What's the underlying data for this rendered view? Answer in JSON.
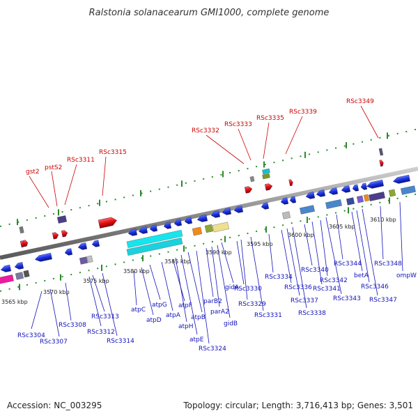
{
  "title": "Ralstonia solanacearum GMI1000, complete genome",
  "footer": {
    "accession": "Accession: NC_003295",
    "stats": "Topology: circular; Length: 3,716,413 bp; Genes: 3,501"
  },
  "scale_labels": [
    "3565 kbp",
    "3570 kbp",
    "3575 kbp",
    "3580 kbp",
    "3585 kbp",
    "3590 kbp",
    "3595 kbp",
    "3600 kbp",
    "3605 kbp",
    "3610 kbp"
  ],
  "top_labels": [
    "RSc3349",
    "RSc3339",
    "RSc3335",
    "RSc3333",
    "RSc3332",
    "RSc3315",
    "RSc3311",
    "pstS2",
    "gst2"
  ],
  "bottom_labels": [
    "RSc3304",
    "RSc3307",
    "RSc3308",
    "RSc3313",
    "RSc3312",
    "RSc3314",
    "atpC",
    "atpD",
    "atpG",
    "atpA",
    "atpF",
    "atpH",
    "atpE",
    "atpB",
    "RSc3324",
    "parB2",
    "parA2",
    "gidA",
    "gidB",
    "RSc3330",
    "RSc3329",
    "RSc3331",
    "RSc3334",
    "RSc3336",
    "RSc3337",
    "RSc3338",
    "RSc3340",
    "RSc3341",
    "RSc3342",
    "RSc3343",
    "RSc3344",
    "betA",
    "RSc3346",
    "RSc3347",
    "RSc3348",
    "ompW"
  ],
  "colors": {
    "backbone": "#8c8c8c",
    "tick": "#2a8a2a",
    "gene_forward": "#1a2ee0",
    "gene_highlight": "#e01010",
    "label_blue": "#1111bb",
    "label_red": "#cc0000"
  }
}
